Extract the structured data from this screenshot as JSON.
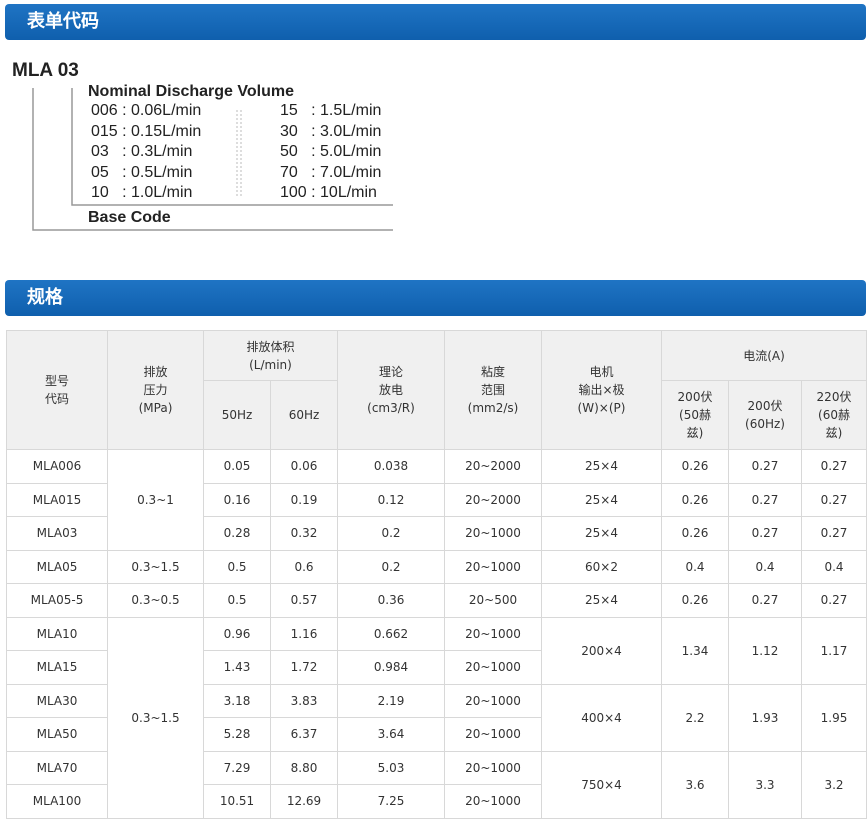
{
  "sections": {
    "code_title": "表单代码",
    "spec_title": "规格"
  },
  "code_diagram": {
    "base": "MLA  03",
    "nominal_title": "Nominal Discharge Volume",
    "base_code": "Base Code",
    "left": [
      "006 : 0.06L/min",
      "015 : 0.15L/min",
      "03   : 0.3L/min",
      "05   : 0.5L/min",
      "10   : 1.0L/min"
    ],
    "right": [
      "15   : 1.5L/min",
      "30   : 3.0L/min",
      "50   : 5.0L/min",
      "70   : 7.0L/min",
      "100 : 10L/min"
    ]
  },
  "table": {
    "headers": {
      "model": [
        "型号",
        "代码"
      ],
      "pressure": [
        "排放",
        "压力",
        "(MPa)"
      ],
      "volume": [
        "排放体积",
        "(L/min)"
      ],
      "hz50": "50Hz",
      "hz60": "60Hz",
      "theory": [
        "理论",
        "放电",
        "(cm3/R)"
      ],
      "viscosity": [
        "粘度",
        "范围",
        "(mm2/s)"
      ],
      "motor": [
        "电机",
        "输出×极",
        "(W)×(P)"
      ],
      "current": "电流(A)",
      "c1": [
        "200伏",
        "(50赫",
        "兹)"
      ],
      "c2": [
        "200伏",
        "(60Hz)"
      ],
      "c3": [
        "220伏",
        "(60赫",
        "兹)"
      ]
    },
    "rows": [
      {
        "model": "MLA006",
        "v50": "0.05",
        "v60": "0.06",
        "theory": "0.038",
        "visc": "20~2000"
      },
      {
        "model": "MLA015",
        "v50": "0.16",
        "v60": "0.19",
        "theory": "0.12",
        "visc": "20~2000"
      },
      {
        "model": "MLA03",
        "v50": "0.28",
        "v60": "0.32",
        "theory": "0.2",
        "visc": "20~1000"
      },
      {
        "model": "MLA05",
        "v50": "0.5",
        "v60": "0.6",
        "theory": "0.2",
        "visc": "20~1000"
      },
      {
        "model": "MLA05-5",
        "v50": "0.5",
        "v60": "0.57",
        "theory": "0.36",
        "visc": "20~500"
      },
      {
        "model": "MLA10",
        "v50": "0.96",
        "v60": "1.16",
        "theory": "0.662",
        "visc": "20~1000"
      },
      {
        "model": "MLA15",
        "v50": "1.43",
        "v60": "1.72",
        "theory": "0.984",
        "visc": "20~1000"
      },
      {
        "model": "MLA30",
        "v50": "3.18",
        "v60": "3.83",
        "theory": "2.19",
        "visc": "20~1000"
      },
      {
        "model": "MLA50",
        "v50": "5.28",
        "v60": "6.37",
        "theory": "3.64",
        "visc": "20~1000"
      },
      {
        "model": "MLA70",
        "v50": "7.29",
        "v60": "8.80",
        "theory": "5.03",
        "visc": "20~1000"
      },
      {
        "model": "MLA100",
        "v50": "10.51",
        "v60": "12.69",
        "theory": "7.25",
        "visc": "20~1000"
      }
    ],
    "pressure": [
      {
        "row": 0,
        "span": 3,
        "v": "0.3~1"
      },
      {
        "row": 3,
        "span": 1,
        "v": "0.3~1.5"
      },
      {
        "row": 4,
        "span": 1,
        "v": "0.3~0.5"
      },
      {
        "row": 5,
        "span": 6,
        "v": "0.3~1.5"
      }
    ],
    "motor": [
      {
        "row": 0,
        "span": 1,
        "m": "25×4",
        "c1": "0.26",
        "c2": "0.27",
        "c3": "0.27"
      },
      {
        "row": 1,
        "span": 1,
        "m": "25×4",
        "c1": "0.26",
        "c2": "0.27",
        "c3": "0.27"
      },
      {
        "row": 2,
        "span": 1,
        "m": "25×4",
        "c1": "0.26",
        "c2": "0.27",
        "c3": "0.27"
      },
      {
        "row": 3,
        "span": 1,
        "m": "60×2",
        "c1": "0.4",
        "c2": "0.4",
        "c3": "0.4"
      },
      {
        "row": 4,
        "span": 1,
        "m": "25×4",
        "c1": "0.26",
        "c2": "0.27",
        "c3": "0.27"
      },
      {
        "row": 5,
        "span": 2,
        "m": "200×4",
        "c1": "1.34",
        "c2": "1.12",
        "c3": "1.17"
      },
      {
        "row": 7,
        "span": 2,
        "m": "400×4",
        "c1": "2.2",
        "c2": "1.93",
        "c3": "1.95"
      },
      {
        "row": 9,
        "span": 2,
        "m": "750×4",
        "c1": "3.6",
        "c2": "3.3",
        "c3": "3.2"
      }
    ]
  }
}
